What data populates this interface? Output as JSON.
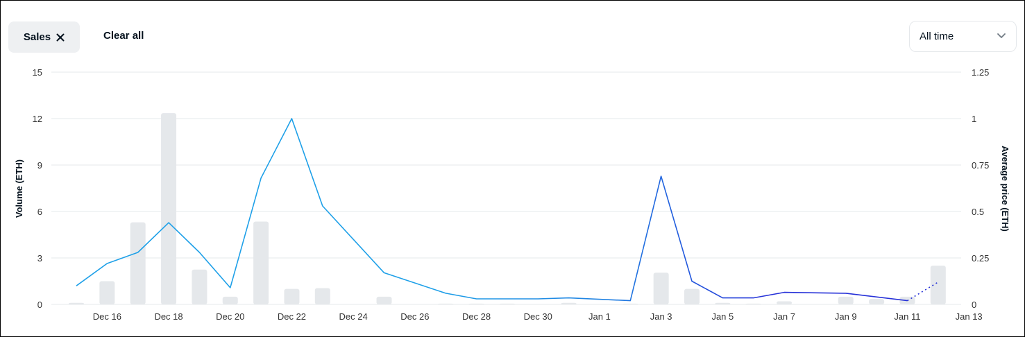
{
  "filters": {
    "chip_label": "Sales",
    "clear_all_label": "Clear all"
  },
  "range_select": {
    "value": "All time"
  },
  "colors": {
    "bar": "#e5e8eb",
    "line_early": "#2081e2",
    "line_light": "#1ea0e8",
    "line_late": "#2631d8",
    "grid": "#e5e8eb",
    "text": "#04111d"
  },
  "chart_data": {
    "type": "bar",
    "ylabel_left": "Volume (ETH)",
    "ylabel_right": "Average price (ETH)",
    "ylim_left": [
      0,
      15
    ],
    "ylim_right": [
      0,
      1.25
    ],
    "yticks_left": [
      "0",
      "3",
      "6",
      "9",
      "12",
      "15"
    ],
    "yticks_right": [
      "0",
      "0.25",
      "0.5",
      "0.75",
      "1",
      "1.25"
    ],
    "x_ticks": [
      "Dec 16",
      "Dec 18",
      "Dec 20",
      "Dec 22",
      "Dec 24",
      "Dec 26",
      "Dec 28",
      "Dec 30",
      "Jan 1",
      "Jan 3",
      "Jan 5",
      "Jan 7",
      "Jan 9",
      "Jan 11",
      "Jan 13"
    ],
    "grid": true,
    "series": [
      {
        "name": "Volume",
        "type": "bar",
        "axis": "left",
        "x": [
          "Dec 15",
          "Dec 16",
          "Dec 17",
          "Dec 18",
          "Dec 19",
          "Dec 20",
          "Dec 21",
          "Dec 22",
          "Dec 23",
          "Dec 24",
          "Dec 25",
          "Dec 26",
          "Dec 27",
          "Dec 28",
          "Dec 29",
          "Dec 30",
          "Dec 31",
          "Jan 1",
          "Jan 2",
          "Jan 3",
          "Jan 4",
          "Jan 5",
          "Jan 6",
          "Jan 7",
          "Jan 8",
          "Jan 9",
          "Jan 10",
          "Jan 11",
          "Jan 12"
        ],
        "values": [
          0.1,
          1.5,
          5.3,
          12.35,
          2.25,
          0.5,
          5.35,
          1.0,
          1.05,
          0,
          0.5,
          0,
          0.05,
          0.05,
          0.05,
          0,
          0.1,
          0,
          0.05,
          2.05,
          1.0,
          0.1,
          0.05,
          0.2,
          0,
          0.5,
          0.35,
          0.5,
          2.5
        ]
      },
      {
        "name": "Average price",
        "type": "line",
        "axis": "right",
        "x": [
          "Dec 15",
          "Dec 16",
          "Dec 17",
          "Dec 18",
          "Dec 19",
          "Dec 20",
          "Dec 21",
          "Dec 22",
          "Dec 23",
          "Dec 25",
          "Dec 27",
          "Dec 28",
          "Dec 30",
          "Dec 31",
          "Jan 2",
          "Jan 3",
          "Jan 4",
          "Jan 5",
          "Jan 6",
          "Jan 7",
          "Jan 9",
          "Jan 11"
        ],
        "values": [
          0.1,
          0.22,
          0.28,
          0.44,
          0.28,
          0.09,
          0.68,
          1.0,
          0.53,
          0.17,
          0.06,
          0.03,
          0.03,
          0.035,
          0.02,
          0.69,
          0.125,
          0.035,
          0.035,
          0.065,
          0.06,
          0.02
        ],
        "projected": {
          "x": "Jan 12",
          "value": 0.12
        }
      }
    ]
  }
}
